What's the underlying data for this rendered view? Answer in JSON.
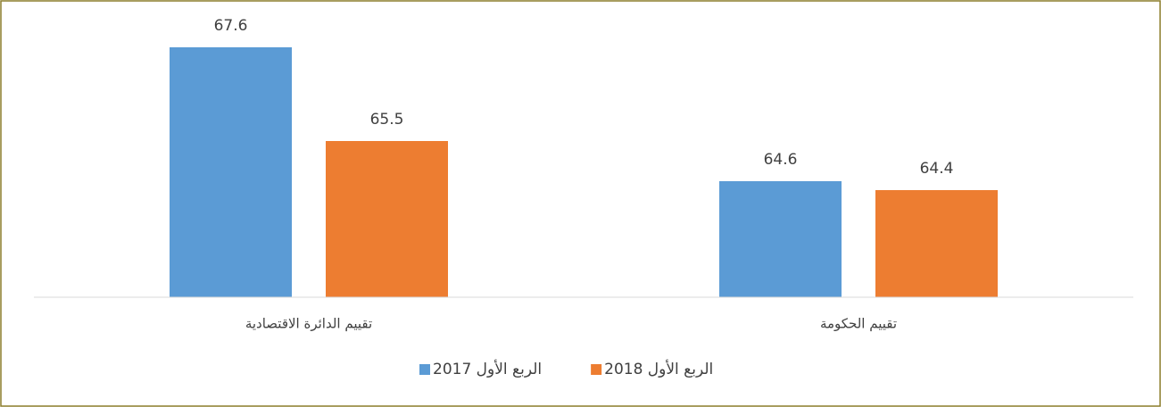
{
  "chart_data": {
    "type": "bar",
    "categories": [
      "تقييم الدائرة الاقتصادية",
      "تقييم الحكومة"
    ],
    "series": [
      {
        "name": "الربع الأول 2017",
        "color": "#5b9bd5",
        "values": [
          67.6,
          64.6
        ]
      },
      {
        "name": "الربع الأول 2018",
        "color": "#ed7d31",
        "values": [
          65.5,
          64.4
        ]
      }
    ],
    "ylim": [
      62,
      68
    ]
  }
}
